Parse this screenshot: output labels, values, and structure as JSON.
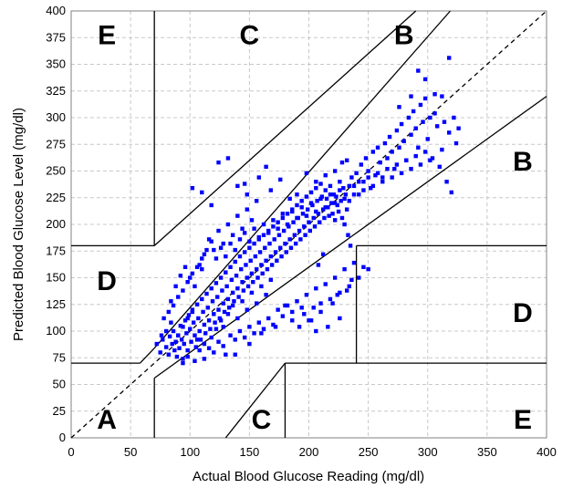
{
  "chart_data": {
    "type": "scatter",
    "xlabel": "Actual Blood Glucose Reading (mg/dl)",
    "ylabel": "Predicted Blood Glucose Level (mg/dl)",
    "xlim": [
      0,
      400
    ],
    "ylim": [
      0,
      400
    ],
    "x_ticks": [
      "0",
      "50",
      "100",
      "150",
      "200",
      "250",
      "300",
      "350",
      "400"
    ],
    "y_ticks": [
      "0",
      "25",
      "50",
      "75",
      "100",
      "125",
      "150",
      "175",
      "200",
      "225",
      "250",
      "275",
      "300",
      "325",
      "350",
      "375",
      "400"
    ],
    "grid": true,
    "legend": "none",
    "marker_color": "#0000ff",
    "identity_line": {
      "from": [
        0,
        0
      ],
      "to": [
        400,
        400
      ],
      "style": "dashed"
    },
    "zone_boundaries": [
      {
        "x": [
          70,
          70
        ],
        "y": [
          400,
          180
        ]
      },
      {
        "x": [
          0,
          70
        ],
        "y": [
          180,
          180
        ]
      },
      {
        "x": [
          70,
          290
        ],
        "y": [
          180,
          400
        ]
      },
      {
        "x": [
          70,
          319
        ],
        "y": [
          84,
          400
        ]
      },
      {
        "x": [
          0,
          58
        ],
        "y": [
          70,
          70
        ]
      },
      {
        "x": [
          58,
          70
        ],
        "y": [
          70,
          84
        ]
      },
      {
        "x": [
          70,
          70
        ],
        "y": [
          0,
          56
        ]
      },
      {
        "x": [
          70,
          400
        ],
        "y": [
          56,
          320
        ]
      },
      {
        "x": [
          130,
          180
        ],
        "y": [
          0,
          70
        ]
      },
      {
        "x": [
          180,
          180
        ],
        "y": [
          0,
          70
        ]
      },
      {
        "x": [
          180,
          400
        ],
        "y": [
          70,
          70
        ]
      },
      {
        "x": [
          240,
          240
        ],
        "y": [
          70,
          180
        ]
      },
      {
        "x": [
          240,
          400
        ],
        "y": [
          180,
          180
        ]
      }
    ],
    "zone_labels": [
      {
        "text": "E",
        "x": 30,
        "y": 378
      },
      {
        "text": "C",
        "x": 150,
        "y": 378
      },
      {
        "text": "B",
        "x": 280,
        "y": 378
      },
      {
        "text": "B",
        "x": 380,
        "y": 260
      },
      {
        "text": "D",
        "x": 30,
        "y": 148
      },
      {
        "text": "D",
        "x": 380,
        "y": 118
      },
      {
        "text": "A",
        "x": 30,
        "y": 18
      },
      {
        "text": "C",
        "x": 160,
        "y": 18
      },
      {
        "text": "E",
        "x": 380,
        "y": 18
      }
    ],
    "points": [
      [
        72,
        88
      ],
      [
        75,
        80
      ],
      [
        77,
        92
      ],
      [
        80,
        85
      ],
      [
        82,
        78
      ],
      [
        83,
        95
      ],
      [
        85,
        88
      ],
      [
        86,
        100
      ],
      [
        87,
        82
      ],
      [
        88,
        90
      ],
      [
        89,
        76
      ],
      [
        90,
        96
      ],
      [
        91,
        84
      ],
      [
        92,
        105
      ],
      [
        93,
        92
      ],
      [
        94,
        74
      ],
      [
        95,
        88
      ],
      [
        96,
        110
      ],
      [
        97,
        98
      ],
      [
        98,
        82
      ],
      [
        99,
        115
      ],
      [
        100,
        102
      ],
      [
        101,
        90
      ],
      [
        102,
        120
      ],
      [
        103,
        108
      ],
      [
        104,
        96
      ],
      [
        105,
        85
      ],
      [
        106,
        125
      ],
      [
        107,
        112
      ],
      [
        108,
        100
      ],
      [
        109,
        92
      ],
      [
        110,
        130
      ],
      [
        111,
        118
      ],
      [
        112,
        106
      ],
      [
        113,
        98
      ],
      [
        114,
        135
      ],
      [
        115,
        122
      ],
      [
        116,
        110
      ],
      [
        117,
        102
      ],
      [
        118,
        140
      ],
      [
        119,
        128
      ],
      [
        120,
        116
      ],
      [
        121,
        108
      ],
      [
        122,
        145
      ],
      [
        123,
        132
      ],
      [
        124,
        120
      ],
      [
        125,
        112
      ],
      [
        126,
        150
      ],
      [
        127,
        138
      ],
      [
        128,
        126
      ],
      [
        129,
        118
      ],
      [
        130,
        155
      ],
      [
        131,
        142
      ],
      [
        132,
        130
      ],
      [
        133,
        122
      ],
      [
        134,
        160
      ],
      [
        135,
        148
      ],
      [
        136,
        136
      ],
      [
        137,
        128
      ],
      [
        138,
        165
      ],
      [
        139,
        152
      ],
      [
        140,
        140
      ],
      [
        141,
        132
      ],
      [
        142,
        170
      ],
      [
        143,
        158
      ],
      [
        144,
        146
      ],
      [
        145,
        138
      ],
      [
        146,
        174
      ],
      [
        147,
        162
      ],
      [
        148,
        150
      ],
      [
        149,
        142
      ],
      [
        150,
        178
      ],
      [
        151,
        166
      ],
      [
        152,
        154
      ],
      [
        153,
        146
      ],
      [
        154,
        182
      ],
      [
        155,
        170
      ],
      [
        156,
        158
      ],
      [
        157,
        150
      ],
      [
        158,
        186
      ],
      [
        159,
        174
      ],
      [
        160,
        162
      ],
      [
        161,
        154
      ],
      [
        162,
        190
      ],
      [
        163,
        178
      ],
      [
        164,
        166
      ],
      [
        165,
        158
      ],
      [
        166,
        194
      ],
      [
        167,
        182
      ],
      [
        168,
        170
      ],
      [
        169,
        162
      ],
      [
        170,
        198
      ],
      [
        171,
        186
      ],
      [
        172,
        174
      ],
      [
        173,
        166
      ],
      [
        174,
        202
      ],
      [
        175,
        190
      ],
      [
        176,
        178
      ],
      [
        177,
        170
      ],
      [
        178,
        206
      ],
      [
        179,
        194
      ],
      [
        180,
        182
      ],
      [
        181,
        174
      ],
      [
        182,
        210
      ],
      [
        183,
        198
      ],
      [
        184,
        186
      ],
      [
        185,
        178
      ],
      [
        186,
        214
      ],
      [
        187,
        202
      ],
      [
        188,
        190
      ],
      [
        189,
        182
      ],
      [
        190,
        218
      ],
      [
        191,
        206
      ],
      [
        192,
        194
      ],
      [
        193,
        186
      ],
      [
        194,
        222
      ],
      [
        195,
        210
      ],
      [
        196,
        198
      ],
      [
        197,
        190
      ],
      [
        198,
        226
      ],
      [
        199,
        214
      ],
      [
        200,
        202
      ],
      [
        201,
        194
      ],
      [
        202,
        230
      ],
      [
        203,
        218
      ],
      [
        204,
        206
      ],
      [
        205,
        198
      ],
      [
        206,
        234
      ],
      [
        207,
        222
      ],
      [
        208,
        210
      ],
      [
        209,
        202
      ],
      [
        210,
        238
      ],
      [
        211,
        226
      ],
      [
        212,
        214
      ],
      [
        213,
        206
      ],
      [
        214,
        232
      ],
      [
        215,
        224
      ],
      [
        216,
        216
      ],
      [
        217,
        208
      ],
      [
        218,
        236
      ],
      [
        219,
        220
      ],
      [
        220,
        210
      ],
      [
        221,
        228
      ],
      [
        222,
        204
      ],
      [
        223,
        226
      ],
      [
        224,
        218
      ],
      [
        225,
        212
      ],
      [
        226,
        240
      ],
      [
        227,
        222
      ],
      [
        228,
        206
      ],
      [
        229,
        234
      ],
      [
        230,
        200
      ],
      [
        231,
        228
      ],
      [
        232,
        214
      ],
      [
        233,
        190
      ],
      [
        234,
        222
      ],
      [
        235,
        180
      ],
      [
        236,
        244
      ],
      [
        238,
        236
      ],
      [
        240,
        248
      ],
      [
        242,
        228
      ],
      [
        244,
        256
      ],
      [
        246,
        240
      ],
      [
        248,
        262
      ],
      [
        250,
        250
      ],
      [
        252,
        234
      ],
      [
        254,
        268
      ],
      [
        256,
        246
      ],
      [
        258,
        272
      ],
      [
        260,
        258
      ],
      [
        262,
        244
      ],
      [
        264,
        276
      ],
      [
        266,
        262
      ],
      [
        268,
        282
      ],
      [
        270,
        268
      ],
      [
        272,
        252
      ],
      [
        274,
        288
      ],
      [
        276,
        272
      ],
      [
        278,
        294
      ],
      [
        280,
        278
      ],
      [
        282,
        260
      ],
      [
        284,
        300
      ],
      [
        286,
        284
      ],
      [
        288,
        306
      ],
      [
        290,
        290
      ],
      [
        292,
        272
      ],
      [
        294,
        312
      ],
      [
        296,
        296
      ],
      [
        298,
        318
      ],
      [
        300,
        280
      ],
      [
        302,
        300
      ],
      [
        304,
        262
      ],
      [
        306,
        322
      ],
      [
        308,
        292
      ],
      [
        310,
        254
      ],
      [
        312,
        270
      ],
      [
        314,
        296
      ],
      [
        316,
        240
      ],
      [
        318,
        286
      ],
      [
        320,
        230
      ],
      [
        322,
        300
      ],
      [
        324,
        276
      ],
      [
        326,
        290
      ],
      [
        292,
        344
      ],
      [
        298,
        336
      ],
      [
        318,
        356
      ],
      [
        312,
        320
      ],
      [
        306,
        304
      ],
      [
        286,
        320
      ],
      [
        276,
        310
      ],
      [
        84,
        128
      ],
      [
        88,
        142
      ],
      [
        92,
        152
      ],
      [
        96,
        160
      ],
      [
        100,
        150
      ],
      [
        104,
        142
      ],
      [
        108,
        162
      ],
      [
        112,
        172
      ],
      [
        110,
        158
      ],
      [
        116,
        186
      ],
      [
        120,
        176
      ],
      [
        124,
        194
      ],
      [
        128,
        182
      ],
      [
        132,
        200
      ],
      [
        136,
        190
      ],
      [
        140,
        208
      ],
      [
        144,
        196
      ],
      [
        148,
        214
      ],
      [
        152,
        204
      ],
      [
        156,
        222
      ],
      [
        102,
        234
      ],
      [
        110,
        230
      ],
      [
        118,
        218
      ],
      [
        124,
        258
      ],
      [
        132,
        262
      ],
      [
        140,
        236
      ],
      [
        146,
        238
      ],
      [
        148,
        228
      ],
      [
        158,
        244
      ],
      [
        164,
        254
      ],
      [
        168,
        232
      ],
      [
        176,
        242
      ],
      [
        184,
        224
      ],
      [
        190,
        228
      ],
      [
        198,
        248
      ],
      [
        206,
        240
      ],
      [
        214,
        246
      ],
      [
        222,
        250
      ],
      [
        228,
        258
      ],
      [
        232,
        260
      ],
      [
        94,
        70
      ],
      [
        98,
        76
      ],
      [
        104,
        72
      ],
      [
        108,
        82
      ],
      [
        112,
        74
      ],
      [
        116,
        84
      ],
      [
        120,
        80
      ],
      [
        124,
        90
      ],
      [
        128,
        86
      ],
      [
        130,
        78
      ],
      [
        134,
        96
      ],
      [
        138,
        92
      ],
      [
        142,
        100
      ],
      [
        146,
        94
      ],
      [
        150,
        104
      ],
      [
        154,
        98
      ],
      [
        158,
        108
      ],
      [
        162,
        102
      ],
      [
        166,
        112
      ],
      [
        170,
        106
      ],
      [
        174,
        120
      ],
      [
        178,
        114
      ],
      [
        182,
        124
      ],
      [
        186,
        118
      ],
      [
        190,
        128
      ],
      [
        194,
        122
      ],
      [
        198,
        134
      ],
      [
        202,
        110
      ],
      [
        206,
        140
      ],
      [
        210,
        126
      ],
      [
        214,
        144
      ],
      [
        218,
        130
      ],
      [
        222,
        150
      ],
      [
        226,
        136
      ],
      [
        230,
        158
      ],
      [
        234,
        142
      ],
      [
        238,
        164
      ],
      [
        242,
        150
      ],
      [
        246,
        160
      ],
      [
        250,
        158
      ],
      [
        90,
        96
      ],
      [
        94,
        104
      ],
      [
        98,
        112
      ],
      [
        102,
        118
      ],
      [
        106,
        92
      ],
      [
        112,
        88
      ],
      [
        118,
        94
      ],
      [
        122,
        102
      ],
      [
        126,
        110
      ],
      [
        128,
        104
      ],
      [
        132,
        116
      ],
      [
        136,
        124
      ],
      [
        140,
        112
      ],
      [
        144,
        128
      ],
      [
        148,
        120
      ],
      [
        152,
        136
      ],
      [
        156,
        126
      ],
      [
        160,
        142
      ],
      [
        164,
        134
      ],
      [
        168,
        148
      ],
      [
        200,
        110
      ],
      [
        206,
        100
      ],
      [
        210,
        118
      ],
      [
        216,
        104
      ],
      [
        220,
        126
      ],
      [
        226,
        112
      ],
      [
        232,
        138
      ],
      [
        236,
        148
      ],
      [
        208,
        162
      ],
      [
        212,
        172
      ],
      [
        138,
        78
      ],
      [
        150,
        88
      ],
      [
        160,
        98
      ],
      [
        172,
        104
      ],
      [
        186,
        110
      ],
      [
        192,
        104
      ],
      [
        196,
        116
      ],
      [
        204,
        122
      ],
      [
        224,
        134
      ],
      [
        180,
        124
      ],
      [
        76,
        96
      ],
      [
        80,
        100
      ],
      [
        84,
        108
      ],
      [
        78,
        112
      ],
      [
        82,
        118
      ],
      [
        86,
        124
      ],
      [
        90,
        132
      ],
      [
        94,
        138
      ],
      [
        98,
        146
      ],
      [
        102,
        154
      ],
      [
        106,
        160
      ],
      [
        110,
        168
      ],
      [
        114,
        176
      ],
      [
        118,
        184
      ],
      [
        122,
        168
      ],
      [
        126,
        178
      ],
      [
        130,
        170
      ],
      [
        134,
        182
      ],
      [
        138,
        176
      ],
      [
        142,
        186
      ],
      [
        146,
        192
      ],
      [
        150,
        184
      ],
      [
        154,
        196
      ],
      [
        158,
        188
      ],
      [
        162,
        200
      ],
      [
        166,
        192
      ],
      [
        170,
        204
      ],
      [
        174,
        196
      ],
      [
        178,
        210
      ],
      [
        182,
        200
      ],
      [
        186,
        212
      ],
      [
        190,
        206
      ],
      [
        194,
        216
      ],
      [
        198,
        208
      ],
      [
        202,
        220
      ],
      [
        206,
        212
      ],
      [
        210,
        224
      ],
      [
        214,
        216
      ],
      [
        218,
        228
      ],
      [
        222,
        220
      ],
      [
        226,
        232
      ],
      [
        230,
        224
      ],
      [
        234,
        236
      ],
      [
        238,
        228
      ],
      [
        242,
        240
      ],
      [
        246,
        232
      ],
      [
        250,
        244
      ],
      [
        254,
        236
      ],
      [
        258,
        248
      ],
      [
        262,
        240
      ],
      [
        266,
        252
      ],
      [
        270,
        244
      ],
      [
        274,
        256
      ],
      [
        278,
        248
      ],
      [
        282,
        260
      ],
      [
        286,
        252
      ],
      [
        290,
        264
      ],
      [
        294,
        256
      ],
      [
        298,
        268
      ],
      [
        302,
        260
      ]
    ]
  }
}
